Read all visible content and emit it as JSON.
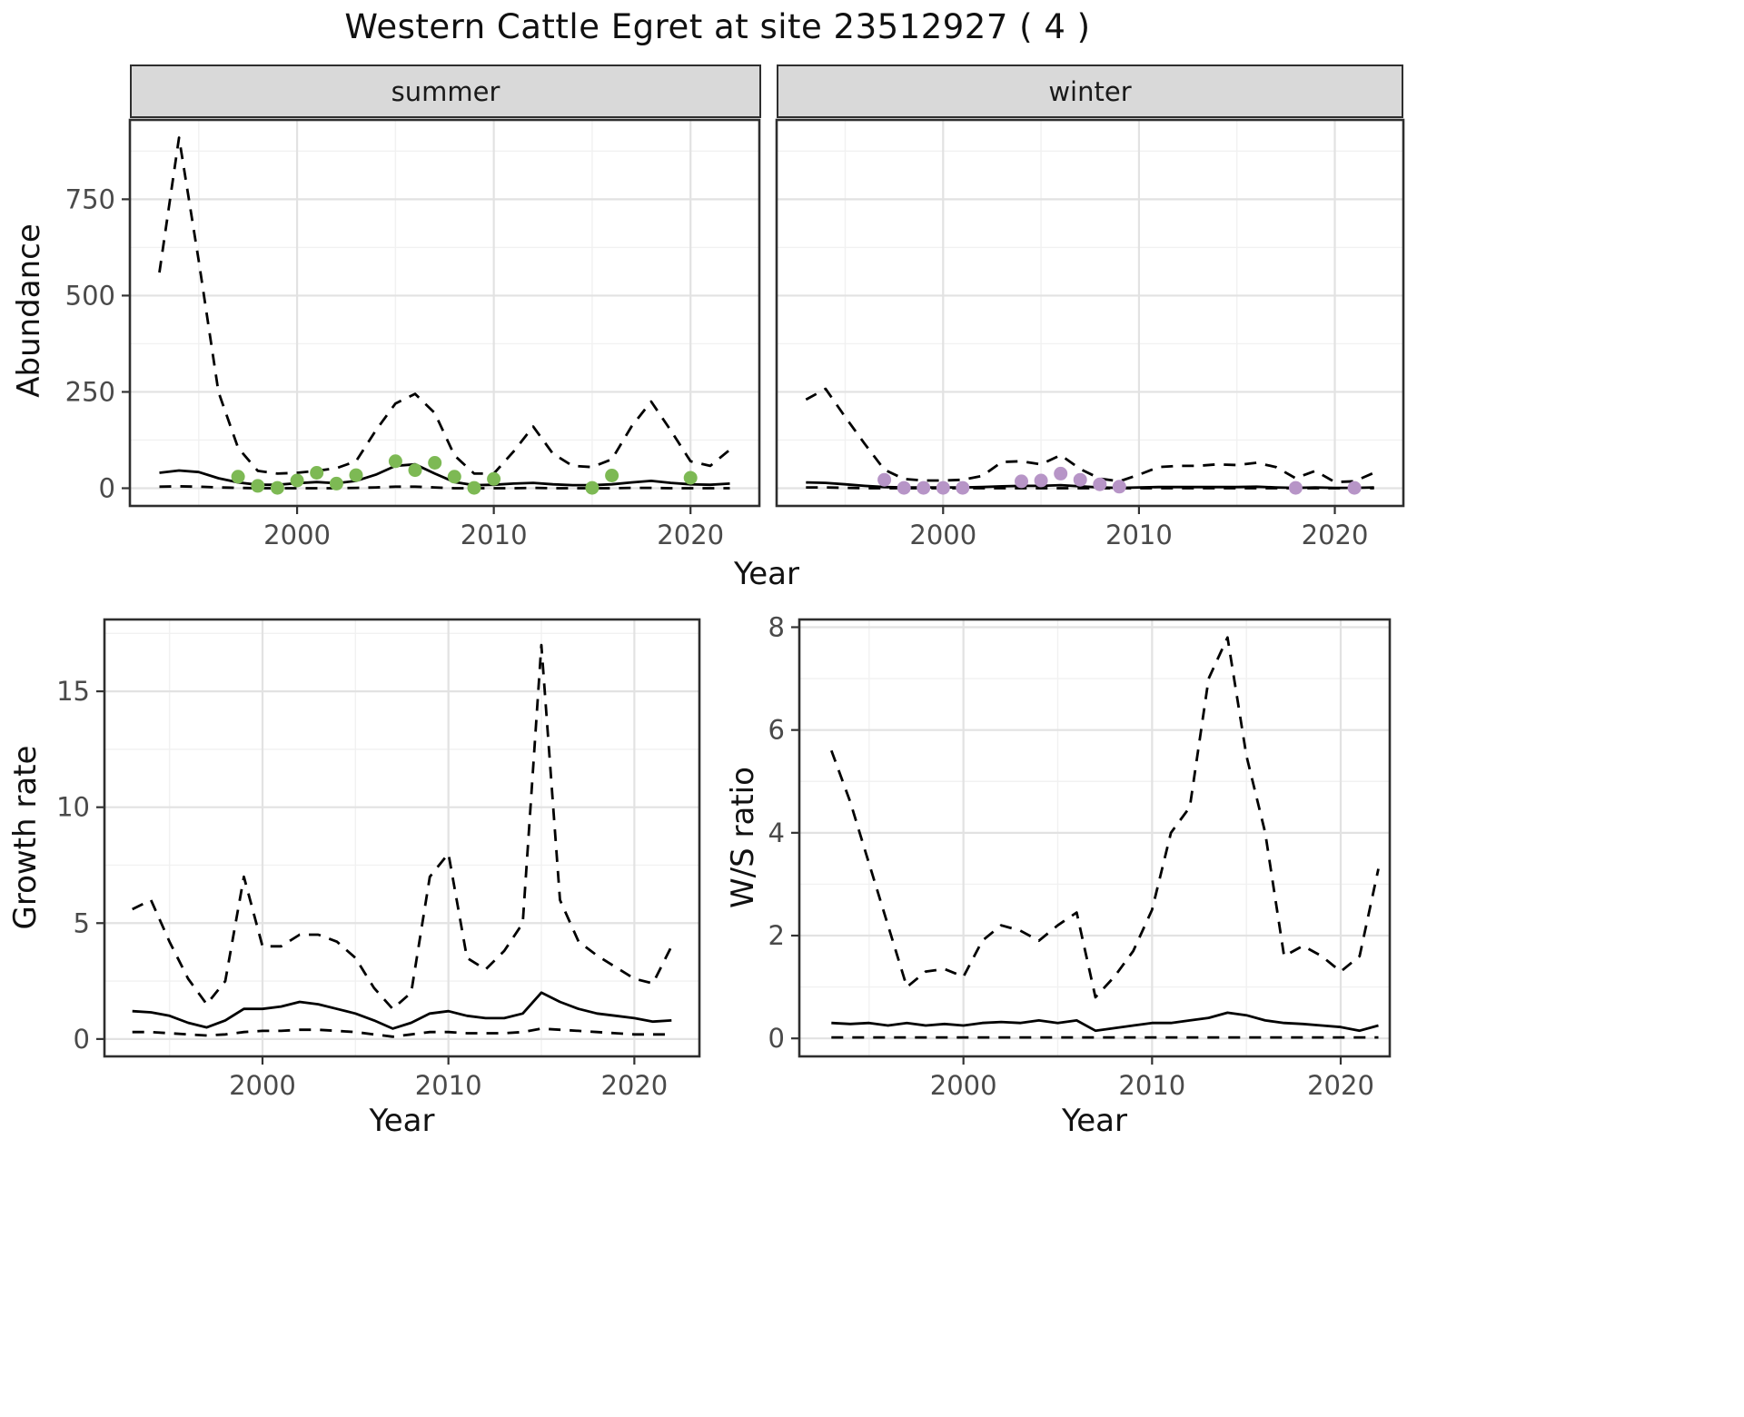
{
  "title": "Western Cattle Egret at site 23512927 ( 4 )",
  "colors": {
    "summer_points": "#7DB954",
    "winter_points": "#B795C7",
    "line": "#000000",
    "strip_bg": "#D9D9D9",
    "grid_major": "#E2E2E2",
    "grid_minor": "#F1F1F1",
    "panel_border": "#2E2E2E",
    "tick_text": "#4A4A4A"
  },
  "chart_data": [
    {
      "id": "summer",
      "type": "line",
      "facet_label": "summer",
      "xlabel": "Year",
      "ylabel": "Abundance",
      "x_range": [
        1991.5,
        2023.5
      ],
      "y_range": [
        -46,
        956
      ],
      "x_ticks": [
        2000,
        2010,
        2020
      ],
      "y_ticks": [
        0,
        250,
        500,
        750
      ],
      "x_minor": [
        1995,
        2005,
        2015
      ],
      "y_minor": [
        125,
        375,
        625,
        875
      ],
      "years": [
        1993,
        1994,
        1995,
        1996,
        1997,
        1998,
        1999,
        2000,
        2001,
        2002,
        2003,
        2004,
        2005,
        2006,
        2007,
        2008,
        2009,
        2010,
        2011,
        2012,
        2013,
        2014,
        2015,
        2016,
        2017,
        2018,
        2019,
        2020,
        2021,
        2022
      ],
      "series": [
        {
          "name": "upper_ci",
          "style": "dashed",
          "values": [
            560,
            910,
            590,
            250,
            105,
            45,
            38,
            40,
            45,
            52,
            70,
            150,
            220,
            245,
            195,
            85,
            38,
            38,
            95,
            160,
            90,
            58,
            55,
            75,
            160,
            225,
            150,
            70,
            58,
            100
          ]
        },
        {
          "name": "median",
          "style": "solid",
          "values": [
            40,
            46,
            42,
            26,
            15,
            9,
            9,
            13,
            16,
            13,
            19,
            35,
            58,
            62,
            38,
            16,
            8,
            9,
            12,
            14,
            10,
            8,
            8,
            10,
            15,
            19,
            14,
            10,
            9,
            12
          ]
        },
        {
          "name": "lower_ci",
          "style": "dashed",
          "values": [
            4,
            5,
            4,
            2,
            1,
            0,
            0,
            0,
            0,
            0,
            1,
            2,
            4,
            4,
            2,
            0,
            0,
            0,
            0,
            1,
            0,
            0,
            0,
            0,
            1,
            1,
            0,
            0,
            0,
            0
          ]
        }
      ],
      "points": {
        "name": "observed_counts",
        "color_key": "summer_points",
        "years": [
          1997,
          1998,
          1999,
          2000,
          2001,
          2002,
          2003,
          2005,
          2006,
          2007,
          2008,
          2009,
          2010,
          2015,
          2016,
          2020
        ],
        "values": [
          30,
          6,
          1,
          20,
          40,
          12,
          34,
          70,
          47,
          66,
          30,
          1,
          24,
          1,
          33,
          27
        ]
      }
    },
    {
      "id": "winter",
      "type": "line",
      "facet_label": "winter",
      "xlabel": "Year",
      "ylabel": "Abundance",
      "x_range": [
        1991.5,
        2023.5
      ],
      "y_range": [
        -46,
        956
      ],
      "x_ticks": [
        2000,
        2010,
        2020
      ],
      "y_ticks": [
        0,
        250,
        500,
        750
      ],
      "x_minor": [
        1995,
        2005,
        2015
      ],
      "y_minor": [
        125,
        375,
        625,
        875
      ],
      "years": [
        1993,
        1994,
        1995,
        1996,
        1997,
        1998,
        1999,
        2000,
        2001,
        2002,
        2003,
        2004,
        2005,
        2006,
        2007,
        2008,
        2009,
        2010,
        2011,
        2012,
        2013,
        2014,
        2015,
        2016,
        2017,
        2018,
        2019,
        2020,
        2021,
        2022
      ],
      "series": [
        {
          "name": "upper_ci",
          "style": "dashed",
          "values": [
            230,
            258,
            185,
            115,
            48,
            24,
            20,
            20,
            22,
            32,
            68,
            70,
            62,
            86,
            50,
            25,
            18,
            35,
            55,
            58,
            58,
            62,
            60,
            66,
            55,
            26,
            45,
            16,
            18,
            40
          ]
        },
        {
          "name": "median",
          "style": "solid",
          "values": [
            15,
            14,
            10,
            6,
            3,
            2,
            2,
            2,
            2,
            3,
            5,
            6,
            6,
            8,
            5,
            2,
            1,
            2,
            3,
            3,
            3,
            3,
            3,
            4,
            2,
            1,
            2,
            1,
            1,
            2
          ]
        },
        {
          "name": "lower_ci",
          "style": "dashed",
          "values": [
            2,
            2,
            1,
            0,
            0,
            0,
            0,
            0,
            0,
            0,
            0,
            0,
            0,
            0,
            0,
            0,
            0,
            0,
            0,
            0,
            0,
            0,
            0,
            0,
            0,
            0,
            0,
            0,
            0,
            0
          ]
        }
      ],
      "points": {
        "name": "observed_counts",
        "color_key": "winter_points",
        "years": [
          1997,
          1998,
          1999,
          2000,
          2001,
          2004,
          2005,
          2006,
          2007,
          2008,
          2009,
          2018,
          2021
        ],
        "values": [
          22,
          1,
          1,
          1,
          1,
          18,
          20,
          38,
          22,
          10,
          4,
          1,
          1
        ]
      }
    },
    {
      "id": "growth",
      "type": "line",
      "facet_label": "",
      "xlabel": "Year",
      "ylabel": "Growth rate",
      "x_range": [
        1991.5,
        2023.5
      ],
      "y_range": [
        -0.75,
        18.1
      ],
      "x_ticks": [
        2000,
        2010,
        2020
      ],
      "y_ticks": [
        0,
        5,
        10,
        15
      ],
      "x_minor": [
        1995,
        2005,
        2015
      ],
      "y_minor": [
        2.5,
        7.5,
        12.5,
        17.5
      ],
      "years": [
        1993,
        1994,
        1995,
        1996,
        1997,
        1998,
        1999,
        2000,
        2001,
        2002,
        2003,
        2004,
        2005,
        2006,
        2007,
        2008,
        2009,
        2010,
        2011,
        2012,
        2013,
        2014,
        2015,
        2016,
        2017,
        2018,
        2019,
        2020,
        2021,
        2022
      ],
      "series": [
        {
          "name": "upper_ci",
          "style": "dashed",
          "values": [
            5.6,
            6.0,
            4.2,
            2.6,
            1.5,
            2.5,
            7.0,
            4.0,
            4.0,
            4.5,
            4.5,
            4.2,
            3.5,
            2.2,
            1.3,
            2.0,
            7.0,
            8.0,
            3.5,
            3.0,
            3.8,
            5.0,
            17.0,
            6.0,
            4.2,
            3.6,
            3.1,
            2.6,
            2.4,
            4.0
          ]
        },
        {
          "name": "median",
          "style": "solid",
          "values": [
            1.2,
            1.15,
            1.0,
            0.7,
            0.5,
            0.8,
            1.3,
            1.3,
            1.4,
            1.6,
            1.5,
            1.3,
            1.1,
            0.8,
            0.45,
            0.7,
            1.1,
            1.2,
            1.0,
            0.9,
            0.9,
            1.1,
            2.0,
            1.6,
            1.3,
            1.1,
            1.0,
            0.9,
            0.75,
            0.8
          ]
        },
        {
          "name": "lower_ci",
          "style": "dashed",
          "values": [
            0.3,
            0.3,
            0.25,
            0.2,
            0.15,
            0.2,
            0.3,
            0.35,
            0.35,
            0.4,
            0.4,
            0.35,
            0.3,
            0.2,
            0.1,
            0.2,
            0.3,
            0.3,
            0.25,
            0.25,
            0.25,
            0.3,
            0.45,
            0.4,
            0.35,
            0.3,
            0.25,
            0.2,
            0.2,
            0.2
          ]
        }
      ]
    },
    {
      "id": "ratio",
      "type": "line",
      "facet_label": "",
      "xlabel": "Year",
      "ylabel": "W/S ratio",
      "x_range": [
        1991.3,
        2022.6
      ],
      "y_range": [
        -0.35,
        8.15
      ],
      "x_ticks": [
        2000,
        2010,
        2020
      ],
      "y_ticks": [
        0,
        2,
        4,
        6,
        8
      ],
      "x_minor": [
        1995,
        2005,
        2015
      ],
      "y_minor": [
        1,
        3,
        5,
        7
      ],
      "years": [
        1993,
        1994,
        1995,
        1996,
        1997,
        1998,
        1999,
        2000,
        2001,
        2002,
        2003,
        2004,
        2005,
        2006,
        2007,
        2008,
        2009,
        2010,
        2011,
        2012,
        2013,
        2014,
        2015,
        2016,
        2017,
        2018,
        2019,
        2020,
        2021,
        2022
      ],
      "series": [
        {
          "name": "upper_ci",
          "style": "dashed",
          "values": [
            5.6,
            4.6,
            3.4,
            2.2,
            1.0,
            1.3,
            1.35,
            1.2,
            1.9,
            2.2,
            2.1,
            1.9,
            2.2,
            2.45,
            0.8,
            1.2,
            1.7,
            2.5,
            4.0,
            4.5,
            7.0,
            7.8,
            5.5,
            4.0,
            1.6,
            1.8,
            1.6,
            1.3,
            1.6,
            3.3
          ]
        },
        {
          "name": "median",
          "style": "solid",
          "values": [
            0.3,
            0.28,
            0.3,
            0.25,
            0.3,
            0.25,
            0.28,
            0.25,
            0.3,
            0.32,
            0.3,
            0.35,
            0.3,
            0.35,
            0.15,
            0.2,
            0.25,
            0.3,
            0.3,
            0.35,
            0.4,
            0.5,
            0.45,
            0.35,
            0.3,
            0.28,
            0.25,
            0.22,
            0.15,
            0.25
          ]
        },
        {
          "name": "lower_ci",
          "style": "dashed",
          "values": [
            0.02,
            0.02,
            0.02,
            0.02,
            0.02,
            0.02,
            0.02,
            0.02,
            0.02,
            0.02,
            0.02,
            0.02,
            0.02,
            0.02,
            0.02,
            0.02,
            0.02,
            0.02,
            0.02,
            0.02,
            0.02,
            0.02,
            0.02,
            0.02,
            0.02,
            0.02,
            0.02,
            0.02,
            0.02,
            0.02
          ]
        }
      ]
    }
  ]
}
